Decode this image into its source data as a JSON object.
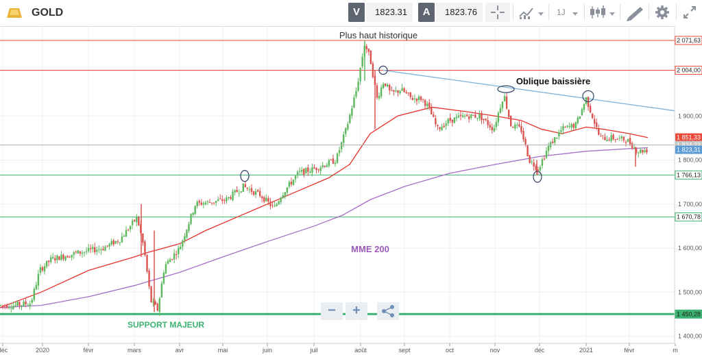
{
  "header": {
    "symbol": "GOLD",
    "bid_badge": "V",
    "bid_value": "1823.31",
    "ask_badge": "A",
    "ask_value": "1823.76",
    "timeframe": "1J",
    "icons": [
      "gold-bar-icon",
      "crosshair-icon",
      "chart-type-icon",
      "candlestick-icon",
      "drawing-tool-icon",
      "settings-gear-icon",
      "fullscreen-icon"
    ]
  },
  "zoom": {
    "minus": "−",
    "plus": "+",
    "share_icon": "share-icon"
  },
  "chart_data": {
    "type": "candlestick",
    "instrument": "GOLD",
    "ylim": [
      1390,
      2090
    ],
    "y_ticks": [
      {
        "value": 1400,
        "label": "1 400,00"
      },
      {
        "value": 1500,
        "label": "1 500,00"
      },
      {
        "value": 1600,
        "label": "1 600,00"
      },
      {
        "value": 1700,
        "label": "1 700,00"
      },
      {
        "value": 1800,
        "label": "1 800,00"
      },
      {
        "value": 1900,
        "label": "1 900,00"
      }
    ],
    "x_ticks": [
      "déc",
      "2020",
      "févr",
      "mars",
      "avr",
      "mai",
      "juin",
      "juil",
      "août",
      "sept",
      "oct",
      "nov",
      "déc",
      "2021",
      "févr",
      "m"
    ],
    "horizontal_levels": [
      {
        "value": 2071.63,
        "label": "2 071,63",
        "color": "#e8493a",
        "style": "resistance"
      },
      {
        "value": 2004.0,
        "label": "2 004,00",
        "color": "#e8493a",
        "style": "resistance"
      },
      {
        "value": 1766.13,
        "label": "1 766,13",
        "color": "#3cb371",
        "style": "support"
      },
      {
        "value": 1670.78,
        "label": "1 670,78",
        "color": "#3cb371",
        "style": "support"
      },
      {
        "value": 1450.28,
        "label": "1 450,28",
        "color": "#3cb371",
        "style": "support-major"
      }
    ],
    "price_tags": [
      {
        "value": 1851.33,
        "label": "1 851,33",
        "color": "#e8493a"
      },
      {
        "value": 1834.22,
        "label": "1 834,22",
        "color": "#c4c4c4"
      },
      {
        "value": 1823.31,
        "label": "1 823,31",
        "color": "#5a9bd5"
      }
    ],
    "current_price": 1823.31,
    "series": [
      {
        "name": "MME 200",
        "color": "#a56cc8"
      },
      {
        "name": "MME 50",
        "color": "#e8312a"
      }
    ],
    "annotations": [
      {
        "text": "Plus haut historique",
        "color": "#333333",
        "bold": false
      },
      {
        "text": "Oblique baissière",
        "color": "#111111",
        "bold": true
      },
      {
        "text": "MME 200",
        "color": "#9b59b6",
        "bold": true
      },
      {
        "text": "SUPPORT MAJEUR",
        "color": "#3cb371",
        "bold": true
      }
    ],
    "trendline": {
      "name": "Oblique baissière",
      "from": {
        "x": "2020-08-18",
        "y": 2004
      },
      "to": {
        "x": "2021-03-05",
        "y": 1912
      },
      "color": "#7fb2d8"
    },
    "candle_colors": {
      "up": "#5cb85c",
      "down": "#d9534f"
    },
    "grid": true
  }
}
